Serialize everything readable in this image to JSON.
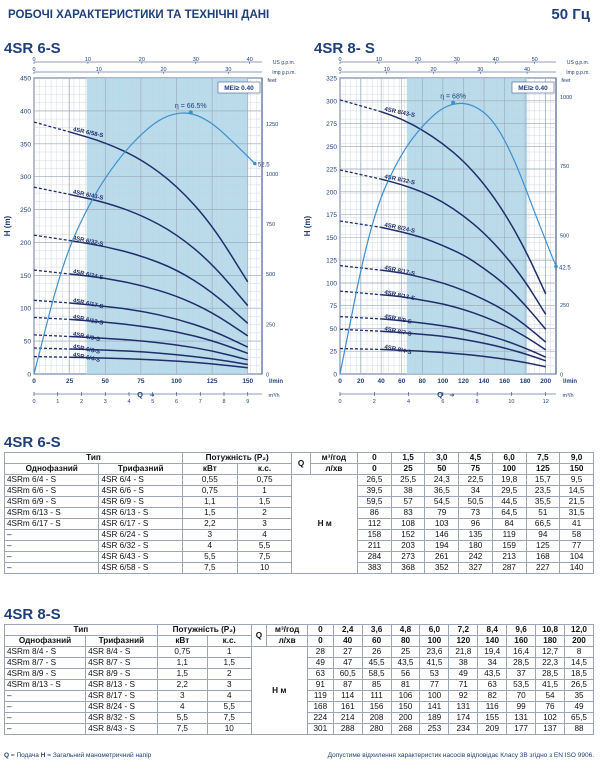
{
  "header": {
    "title": "РОБОЧІ ХАРАКТЕРИСТИКИ ТА ТЕХНІЧНІ ДАНІ",
    "freq": "50 Гц"
  },
  "footer": {
    "legend_q": "Q",
    "legend_q_text": "= Подача",
    "legend_h": "H",
    "legend_h_text": "= Загальний манометричний напір",
    "note": "Допустиме відхилення характеристик насосів відповідає Класу 3B згідно з EN ISO 9906."
  },
  "chart_data": [
    {
      "type": "line",
      "title": "4SR 6-S",
      "mei": "MEI≥ 0.40",
      "eta_label": "η = 66.5%",
      "end_label": "52.5",
      "ylabel": "H (m)",
      "feet_label": "feet",
      "xlabel": "Q",
      "x_unit": "l/min",
      "m3h_unit": "m³/h",
      "usgpm_label": "US g.p.m.",
      "impgpm_label": "Imp g.p.m.",
      "xlim": [
        0,
        160
      ],
      "ylim": [
        0,
        450
      ],
      "x_ticks": [
        0,
        25,
        50,
        75,
        100,
        125,
        150
      ],
      "y_ticks": [
        0,
        50,
        100,
        150,
        200,
        250,
        300,
        350,
        400,
        450
      ],
      "feet_ticks": [
        0,
        250,
        500,
        750,
        1000,
        1250
      ],
      "m3h_ticks": [
        0,
        1,
        2,
        3,
        4,
        5,
        6,
        7,
        8,
        9
      ],
      "usgpm_ticks": [
        0,
        10,
        20,
        30,
        40
      ],
      "impgpm_ticks": [
        0,
        10,
        20,
        30
      ],
      "band": [
        37,
        150
      ],
      "x": [
        0,
        25,
        50,
        75,
        100,
        125,
        150
      ],
      "series": [
        {
          "name": "4SR 6/58-S",
          "values": [
            383,
            368,
            352,
            327,
            287,
            227,
            140
          ]
        },
        {
          "name": "4SR 6/43-S",
          "values": [
            284,
            273,
            261,
            242,
            213,
            168,
            104
          ]
        },
        {
          "name": "4SR 6/32-S",
          "values": [
            211,
            203,
            194,
            180,
            159,
            125,
            77
          ]
        },
        {
          "name": "4SR 6/24-S",
          "values": [
            158,
            152,
            146,
            135,
            119,
            94,
            58
          ]
        },
        {
          "name": "4SR 6/17-S",
          "values": [
            112,
            108,
            103,
            96,
            84,
            66.5,
            41
          ]
        },
        {
          "name": "4SR 6/13-S",
          "values": [
            86,
            83,
            79,
            73,
            64.5,
            51,
            31.5
          ]
        },
        {
          "name": "4SR 6/9-S",
          "values": [
            59.5,
            57,
            54.5,
            50.5,
            44.5,
            35.5,
            21.5
          ]
        },
        {
          "name": "4SR 6/6-S",
          "values": [
            39.5,
            38,
            36.5,
            34,
            29.5,
            23.5,
            14.5
          ]
        },
        {
          "name": "4SR 6/4-S",
          "values": [
            26.5,
            25.5,
            24.3,
            22.5,
            19.8,
            15.7,
            9.5
          ]
        }
      ],
      "efficiency": {
        "x": [
          0,
          20,
          40,
          60,
          80,
          95,
          110,
          125,
          140,
          155
        ],
        "y": [
          0,
          170,
          265,
          330,
          375,
          395,
          398,
          382,
          352,
          320
        ]
      }
    },
    {
      "type": "line",
      "title": "4SR 8- S",
      "mei": "MEI≥ 0.40",
      "eta_label": "η = 68%",
      "end_label": "42.5",
      "ylabel": "H (m)",
      "feet_label": "feet",
      "xlabel": "Q",
      "x_unit": "l/min",
      "m3h_unit": "m³/h",
      "usgpm_label": "US g.p.m.",
      "impgpm_label": "Imp g.p.m.",
      "xlim": [
        0,
        210
      ],
      "ylim": [
        0,
        325
      ],
      "x_ticks": [
        0,
        20,
        40,
        60,
        80,
        100,
        120,
        140,
        160,
        180,
        200
      ],
      "y_ticks": [
        0,
        25,
        50,
        75,
        100,
        125,
        150,
        175,
        200,
        225,
        250,
        275,
        300,
        325
      ],
      "feet_ticks": [
        0,
        250,
        500,
        750,
        1000
      ],
      "m3h_ticks": [
        0,
        2,
        4,
        6,
        8,
        10,
        12
      ],
      "usgpm_ticks": [
        0,
        10,
        20,
        30,
        40,
        50
      ],
      "impgpm_ticks": [
        0,
        10,
        20,
        30,
        40
      ],
      "band": [
        65,
        182
      ],
      "x": [
        0,
        40,
        60,
        80,
        100,
        120,
        140,
        160,
        180,
        200
      ],
      "series": [
        {
          "name": "4SR 8/43-S",
          "values": [
            301,
            288,
            280,
            268,
            253,
            234,
            209,
            177,
            137,
            88
          ]
        },
        {
          "name": "4SR 8/32-S",
          "values": [
            224,
            214,
            208,
            200,
            189,
            174,
            155,
            131,
            102,
            65.5
          ]
        },
        {
          "name": "4SR 8/24-S",
          "values": [
            168,
            161,
            156,
            150,
            141,
            131,
            116,
            99,
            76,
            49
          ]
        },
        {
          "name": "4SR 8/17-S",
          "values": [
            119,
            114,
            111,
            106,
            100,
            92,
            82,
            70,
            54,
            35
          ]
        },
        {
          "name": "4SR 8/13-S",
          "values": [
            91,
            87,
            85,
            81,
            77,
            71,
            63,
            53.5,
            41.5,
            26.5
          ]
        },
        {
          "name": "4SR 8/9-S",
          "values": [
            63,
            60.5,
            58.5,
            56,
            53,
            49,
            43.5,
            37,
            28.5,
            18.5
          ]
        },
        {
          "name": "4SR 8/7-S",
          "values": [
            49,
            47,
            45.5,
            43.5,
            41.5,
            38,
            34,
            28.5,
            22.3,
            14.5
          ]
        },
        {
          "name": "4SR 8/4-S",
          "values": [
            28,
            27,
            26,
            25,
            23.6,
            21.8,
            19.4,
            16.4,
            12.7,
            8
          ]
        }
      ],
      "efficiency": {
        "x": [
          0,
          30,
          60,
          90,
          110,
          130,
          150,
          170,
          190,
          210
        ],
        "y": [
          0,
          170,
          245,
          285,
          298,
          296,
          278,
          235,
          175,
          118
        ]
      }
    }
  ],
  "table6": {
    "section": "4SR 6-S",
    "h_type": "Тип",
    "h_power": "Потужність (P₂)",
    "h_q": "Q",
    "h_m3h": "м³/год",
    "h_lmin": "л/хв",
    "h_single": "Однофазний",
    "h_three": "Трифазний",
    "h_kw": "кВт",
    "h_hp": "к.с.",
    "h_hm": "H м",
    "m3h": [
      "0",
      "1,5",
      "3,0",
      "4,5",
      "6,0",
      "7,5",
      "9,0"
    ],
    "lmin": [
      "0",
      "25",
      "50",
      "75",
      "100",
      "125",
      "150"
    ],
    "rows": [
      {
        "single": "4SRm 6/4   - S",
        "three": "4SR 6/4   - S",
        "kw": "0,55",
        "hp": "0,75",
        "h": [
          "26,5",
          "25,5",
          "24,3",
          "22,5",
          "19,8",
          "15,7",
          "9,5"
        ]
      },
      {
        "single": "4SRm 6/6   - S",
        "three": "4SR 6/6   - S",
        "kw": "0,75",
        "hp": "1",
        "h": [
          "39,5",
          "38",
          "36,5",
          "34",
          "29,5",
          "23,5",
          "14,5"
        ]
      },
      {
        "single": "4SRm 6/9   - S",
        "three": "4SR 6/9   - S",
        "kw": "1,1",
        "hp": "1,5",
        "h": [
          "59,5",
          "57",
          "54,5",
          "50,5",
          "44,5",
          "35,5",
          "21,5"
        ]
      },
      {
        "single": "4SRm 6/13 - S",
        "three": "4SR 6/13 - S",
        "kw": "1,5",
        "hp": "2",
        "h": [
          "86",
          "83",
          "79",
          "73",
          "64,5",
          "51",
          "31,5"
        ]
      },
      {
        "single": "4SRm 6/17 - S",
        "three": "4SR 6/17 - S",
        "kw": "2,2",
        "hp": "3",
        "h": [
          "112",
          "108",
          "103",
          "96",
          "84",
          "66,5",
          "41"
        ]
      },
      {
        "single": "–",
        "three": "4SR 6/24 - S",
        "kw": "3",
        "hp": "4",
        "h": [
          "158",
          "152",
          "146",
          "135",
          "119",
          "94",
          "58"
        ]
      },
      {
        "single": "–",
        "three": "4SR 6/32 - S",
        "kw": "4",
        "hp": "5,5",
        "h": [
          "211",
          "203",
          "194",
          "180",
          "159",
          "125",
          "77"
        ]
      },
      {
        "single": "–",
        "three": "4SR 6/43 - S",
        "kw": "5,5",
        "hp": "7,5",
        "h": [
          "284",
          "273",
          "261",
          "242",
          "213",
          "168",
          "104"
        ]
      },
      {
        "single": "–",
        "three": "4SR 6/58 - S",
        "kw": "7,5",
        "hp": "10",
        "h": [
          "383",
          "368",
          "352",
          "327",
          "287",
          "227",
          "140"
        ]
      }
    ]
  },
  "table8": {
    "section": "4SR 8-S",
    "h_type": "Тип",
    "h_power": "Потужність (P₂)",
    "h_q": "Q",
    "h_m3h": "м³/год",
    "h_lmin": "л/хв",
    "h_single": "Однофазний",
    "h_three": "Трифазний",
    "h_kw": "кВт",
    "h_hp": "к.с.",
    "h_hm": "H м",
    "m3h": [
      "0",
      "2,4",
      "3,6",
      "4,8",
      "6,0",
      "7,2",
      "8,4",
      "9,6",
      "10,8",
      "12,0"
    ],
    "lmin": [
      "0",
      "40",
      "60",
      "80",
      "100",
      "120",
      "140",
      "160",
      "180",
      "200"
    ],
    "rows": [
      {
        "single": "4SRm 8/4   - S",
        "three": "4SR 8/4   - S",
        "kw": "0,75",
        "hp": "1",
        "h": [
          "28",
          "27",
          "26",
          "25",
          "23,6",
          "21,8",
          "19,4",
          "16,4",
          "12,7",
          "8"
        ]
      },
      {
        "single": "4SRm 8/7   - S",
        "three": "4SR 8/7   - S",
        "kw": "1,1",
        "hp": "1,5",
        "h": [
          "49",
          "47",
          "45,5",
          "43,5",
          "41,5",
          "38",
          "34",
          "28,5",
          "22,3",
          "14,5"
        ]
      },
      {
        "single": "4SRm 8/9   - S",
        "three": "4SR 8/9   - S",
        "kw": "1,5",
        "hp": "2",
        "h": [
          "63",
          "60,5",
          "58,5",
          "56",
          "53",
          "49",
          "43,5",
          "37",
          "28,5",
          "18,5"
        ]
      },
      {
        "single": "4SRm 8/13 - S",
        "three": "4SR 8/13 - S",
        "kw": "2,2",
        "hp": "3",
        "h": [
          "91",
          "87",
          "85",
          "81",
          "77",
          "71",
          "63",
          "53,5",
          "41,5",
          "26,5"
        ]
      },
      {
        "single": "–",
        "three": "4SR 8/17 - S",
        "kw": "3",
        "hp": "4",
        "h": [
          "119",
          "114",
          "111",
          "106",
          "100",
          "92",
          "82",
          "70",
          "54",
          "35"
        ]
      },
      {
        "single": "–",
        "three": "4SR 8/24 - S",
        "kw": "4",
        "hp": "5,5",
        "h": [
          "168",
          "161",
          "156",
          "150",
          "141",
          "131",
          "116",
          "99",
          "76",
          "49"
        ]
      },
      {
        "single": "–",
        "three": "4SR 8/32 - S",
        "kw": "5,5",
        "hp": "7,5",
        "h": [
          "224",
          "214",
          "208",
          "200",
          "189",
          "174",
          "155",
          "131",
          "102",
          "65,5"
        ]
      },
      {
        "single": "–",
        "three": "4SR 8/43 - S",
        "kw": "7,5",
        "hp": "10",
        "h": [
          "301",
          "288",
          "280",
          "268",
          "253",
          "234",
          "209",
          "177",
          "137",
          "88"
        ]
      }
    ]
  }
}
